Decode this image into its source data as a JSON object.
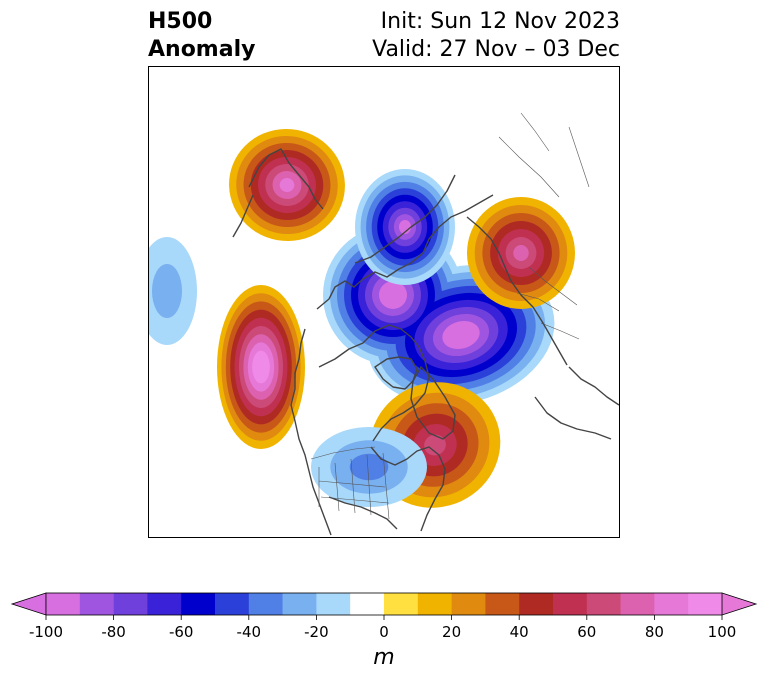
{
  "header": {
    "field": "H500",
    "type": "Anomaly",
    "init": "Init: Sun 12 Nov 2023",
    "valid": "Valid: 27 Nov – 03 Dec"
  },
  "map_data": {
    "projection": "north-polar-stereographic",
    "units": "m",
    "colorbar": {
      "min": -100,
      "max": 100,
      "step": 10,
      "extend": "both",
      "tick_labels": [
        "-100",
        "-80",
        "-60",
        "-40",
        "-20",
        "0",
        "20",
        "40",
        "60",
        "80",
        "100"
      ],
      "colors": [
        "#d86fe0",
        "#a055e0",
        "#7040dc",
        "#3a22d8",
        "#0000cc",
        "#2a40d8",
        "#5080e6",
        "#78b0f0",
        "#a8d8fa",
        "#ffffff",
        "#ffe040",
        "#f0b400",
        "#e08a10",
        "#c85818",
        "#b02a24",
        "#c03050",
        "#cc4a78",
        "#dc62b0",
        "#e678d8",
        "#f08ae8"
      ],
      "extend_low_color": "#d86fe0",
      "extend_high_color": "#e678d8"
    },
    "anomalies": [
      {
        "name": "trough-central-arctic",
        "sign": "negative",
        "peak_m": -100
      },
      {
        "name": "trough-siberia-pole",
        "sign": "negative",
        "peak_m": -90
      },
      {
        "name": "ridge-gulf-of-alaska",
        "sign": "positive",
        "peak_m": 100
      },
      {
        "name": "ridge-east-asia",
        "sign": "positive",
        "peak_m": 80
      },
      {
        "name": "ridge-western-europe",
        "sign": "positive",
        "peak_m": 70
      },
      {
        "name": "ridge-newfoundland",
        "sign": "positive",
        "peak_m": 60
      },
      {
        "name": "trough-contiguous-us",
        "sign": "negative",
        "peak_m": -30
      },
      {
        "name": "trough-east-pacific",
        "sign": "negative",
        "peak_m": -20
      }
    ]
  }
}
